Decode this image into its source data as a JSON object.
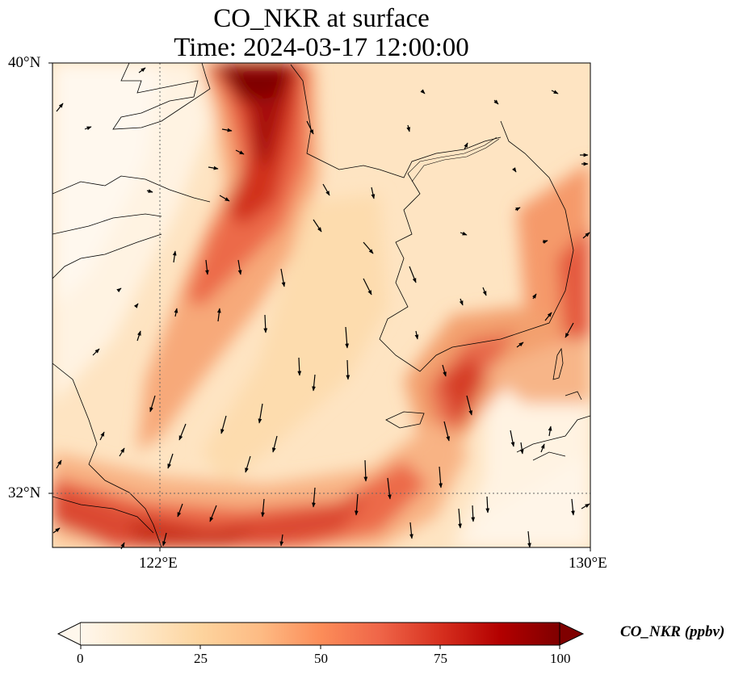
{
  "title": {
    "line1": "CO_NKR at surface",
    "line2": "Time: 2024-03-17 12:00:00"
  },
  "map": {
    "lat_range": [
      31,
      40
    ],
    "lon_range": [
      120,
      130
    ],
    "lat_ticks": [
      {
        "value": 32,
        "label": "32°N"
      },
      {
        "value": 40,
        "label": "40°N"
      }
    ],
    "lon_ticks": [
      {
        "value": 122,
        "label": "122°E"
      },
      {
        "value": 130,
        "label": "130°E"
      }
    ],
    "gridlines": "dotted at 122°E and 32°N",
    "field": "CO_NKR concentration shaded with wind vectors",
    "colormap": "OrRd",
    "high_concentration_regions": [
      "plume from Bohai Bay (north) extending southwest",
      "band along Yangtze river mouth (south)",
      "band over southern Korean coast and eastern Korea"
    ]
  },
  "colorbar": {
    "label": "CO_NKR (ppbv)",
    "ticks": [
      "0",
      "25",
      "50",
      "75",
      "100"
    ],
    "range": [
      0,
      100
    ],
    "extend": "both",
    "colors": [
      "#fff7ec",
      "#fee8c8",
      "#fdd49e",
      "#fdbb84",
      "#fc8d59",
      "#ef6548",
      "#d7301f",
      "#b30000",
      "#7f0000"
    ]
  }
}
